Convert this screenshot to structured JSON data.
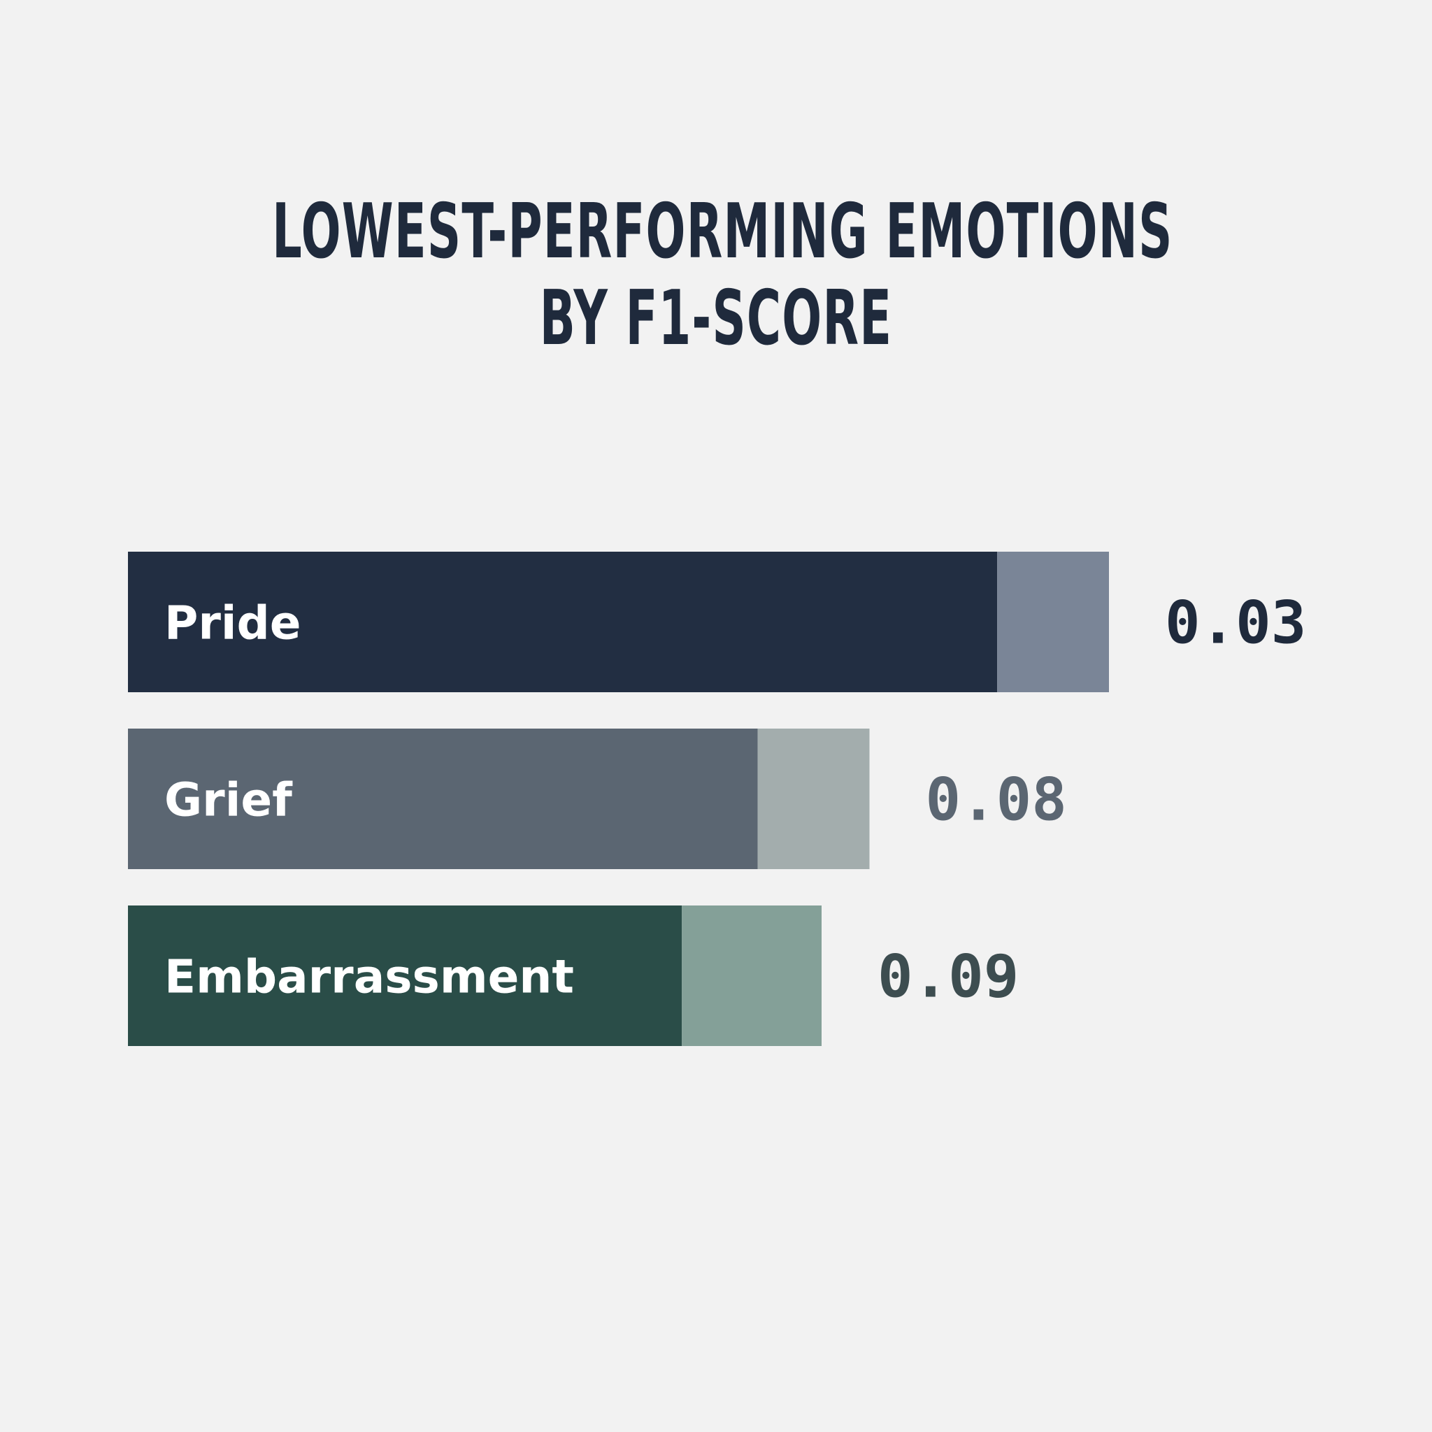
{
  "chart_data": {
    "type": "bar",
    "orientation": "horizontal",
    "title_lines": [
      "LOWEST-PERFORMING EMOTIONS",
      "BY F1-SCORE"
    ],
    "categories": [
      "Pride",
      "Grief",
      "Embarrassment"
    ],
    "values": [
      0.03,
      0.08,
      0.09
    ],
    "value_labels": [
      "0.03",
      "0.08",
      "0.09"
    ],
    "grid": false,
    "legend": "none",
    "colors": {
      "bars": [
        "#222e42",
        "#5b6672",
        "#2a4d48"
      ],
      "bar_ends": [
        "#7a8597",
        "#a3adad",
        "#84a098"
      ],
      "value_text": [
        "#1f2a3c",
        "#5b6672",
        "#3d4d50"
      ]
    }
  }
}
